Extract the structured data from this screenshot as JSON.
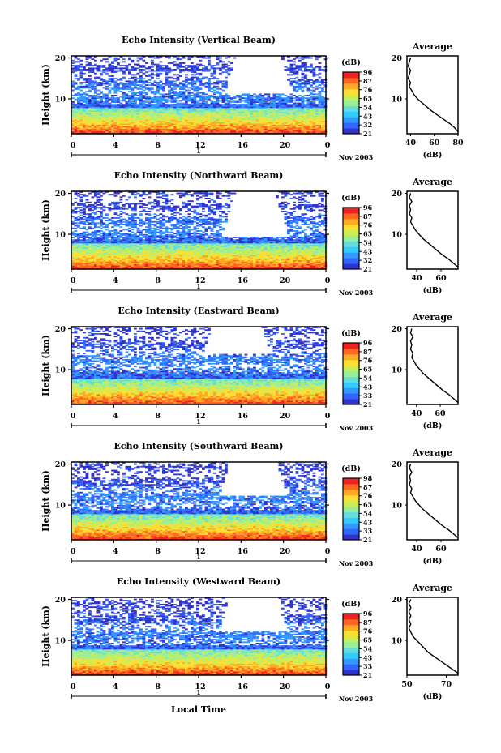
{
  "figure": {
    "xlabel": "Local Time",
    "date_label": "Nov 2003",
    "ylabel": "Height (km)",
    "cbar_unit": "(dB)",
    "avg_title": "Average",
    "avg_xlabel": "(dB)"
  },
  "colormap": [
    "#3333cc",
    "#3366ff",
    "#3399ff",
    "#33ccff",
    "#66dddd",
    "#99ee99",
    "#ccee55",
    "#ffdd33",
    "#ffaa22",
    "#ff6622",
    "#ee2222"
  ],
  "chart_data": [
    {
      "type": "heatmap",
      "title": "Echo Intensity (Vertical Beam)",
      "xlabel": "Local Time",
      "ylabel": "Height (km)",
      "x_ticks": [
        "0",
        "4",
        "8",
        "12",
        "16",
        "20",
        "0"
      ],
      "y_ticks": [
        "10",
        "20"
      ],
      "xlim": [
        0,
        24
      ],
      "ylim": [
        1.5,
        20.5
      ],
      "date_label": "Nov 2003",
      "day_label": "1",
      "colorbar": {
        "unit": "(dB)",
        "ticks": [
          "96",
          "87",
          "76",
          "65",
          "54",
          "43",
          "32",
          "21"
        ]
      },
      "gap_center_hour": 17.5,
      "gap_bottom_km": 11.5,
      "average": {
        "title": "Average",
        "xlabel": "(dB)",
        "xlim": [
          37,
          80
        ],
        "x_ticks": [
          "40",
          "60",
          "80"
        ],
        "y_ticks": [
          "10",
          "20"
        ],
        "profile": [
          [
            80,
            2
          ],
          [
            77,
            3
          ],
          [
            73,
            4
          ],
          [
            68,
            5
          ],
          [
            63,
            6
          ],
          [
            58,
            7
          ],
          [
            54,
            8
          ],
          [
            50,
            9
          ],
          [
            46,
            10
          ],
          [
            43,
            11
          ],
          [
            41,
            12
          ],
          [
            39,
            13
          ],
          [
            40,
            14
          ],
          [
            38,
            15
          ],
          [
            39,
            16
          ],
          [
            40,
            17
          ],
          [
            38,
            18
          ],
          [
            39,
            19
          ],
          [
            40,
            20
          ]
        ]
      }
    },
    {
      "type": "heatmap",
      "title": "Echo Intensity (Northward Beam)",
      "xlabel": "Local Time",
      "ylabel": "Height (km)",
      "x_ticks": [
        "0",
        "4",
        "8",
        "12",
        "16",
        "20",
        "0"
      ],
      "y_ticks": [
        "10",
        "20"
      ],
      "xlim": [
        0,
        24
      ],
      "ylim": [
        1.5,
        20.5
      ],
      "date_label": "Nov 2003",
      "day_label": "1",
      "colorbar": {
        "unit": "(dB)",
        "ticks": [
          "96",
          "87",
          "76",
          "65",
          "54",
          "43",
          "32",
          "21"
        ]
      },
      "gap_center_hour": 17.2,
      "gap_bottom_km": 9.5,
      "average": {
        "title": "Average",
        "xlabel": "(dB)",
        "xlim": [
          32,
          74
        ],
        "x_ticks": [
          "40",
          "60"
        ],
        "y_ticks": [
          "10",
          "20"
        ],
        "profile": [
          [
            74,
            2
          ],
          [
            70,
            3
          ],
          [
            66,
            4
          ],
          [
            61,
            5
          ],
          [
            57,
            6
          ],
          [
            53,
            7
          ],
          [
            49,
            8
          ],
          [
            45,
            9
          ],
          [
            42,
            10
          ],
          [
            39,
            11
          ],
          [
            37,
            12
          ],
          [
            35,
            13
          ],
          [
            36,
            14
          ],
          [
            34,
            15
          ],
          [
            35,
            16
          ],
          [
            34,
            17
          ],
          [
            36,
            18
          ],
          [
            34,
            19
          ],
          [
            35,
            20
          ]
        ]
      }
    },
    {
      "type": "heatmap",
      "title": "Echo Intensity (Eastward Beam)",
      "xlabel": "Local Time",
      "ylabel": "Height (km)",
      "x_ticks": [
        "0",
        "4",
        "8",
        "12",
        "16",
        "20",
        "0"
      ],
      "y_ticks": [
        "10",
        "20"
      ],
      "xlim": [
        0,
        24
      ],
      "ylim": [
        1.5,
        20.5
      ],
      "date_label": "Nov 2003",
      "day_label": "1",
      "colorbar": {
        "unit": "(dB)",
        "ticks": [
          "96",
          "87",
          "76",
          "65",
          "54",
          "43",
          "33",
          "21"
        ]
      },
      "gap_center_hour": 15.5,
      "gap_bottom_km": 14.0,
      "average": {
        "title": "Average",
        "xlabel": "(dB)",
        "xlim": [
          32,
          75
        ],
        "x_ticks": [
          "40",
          "60"
        ],
        "y_ticks": [
          "10",
          "20"
        ],
        "profile": [
          [
            75,
            2
          ],
          [
            71,
            3
          ],
          [
            67,
            4
          ],
          [
            62,
            5
          ],
          [
            58,
            6
          ],
          [
            54,
            7
          ],
          [
            50,
            8
          ],
          [
            46,
            9
          ],
          [
            43,
            10
          ],
          [
            40,
            11
          ],
          [
            38,
            12
          ],
          [
            36,
            13
          ],
          [
            37,
            14
          ],
          [
            35,
            15
          ],
          [
            36,
            16
          ],
          [
            35,
            17
          ],
          [
            37,
            18
          ],
          [
            35,
            19
          ],
          [
            36,
            20
          ]
        ]
      }
    },
    {
      "type": "heatmap",
      "title": "Echo Intensity (Southward Beam)",
      "xlabel": "Local Time",
      "ylabel": "Height (km)",
      "x_ticks": [
        "0",
        "4",
        "8",
        "12",
        "16",
        "20",
        "0"
      ],
      "y_ticks": [
        "10",
        "20"
      ],
      "xlim": [
        0,
        24
      ],
      "ylim": [
        1.5,
        20.5
      ],
      "date_label": "Nov 2003",
      "day_label": "1",
      "colorbar": {
        "unit": "(dB)",
        "ticks": [
          "98",
          "87",
          "76",
          "65",
          "54",
          "43",
          "33",
          "21"
        ]
      },
      "gap_center_hour": 17.0,
      "gap_bottom_km": 12.5,
      "average": {
        "title": "Average",
        "xlabel": "(dB)",
        "xlim": [
          32,
          74
        ],
        "x_ticks": [
          "40",
          "60"
        ],
        "y_ticks": [
          "10",
          "20"
        ],
        "profile": [
          [
            74,
            2
          ],
          [
            70,
            3
          ],
          [
            66,
            4
          ],
          [
            61,
            5
          ],
          [
            57,
            6
          ],
          [
            53,
            7
          ],
          [
            49,
            8
          ],
          [
            45,
            9
          ],
          [
            42,
            10
          ],
          [
            39,
            11
          ],
          [
            37,
            12
          ],
          [
            35,
            13
          ],
          [
            36,
            14
          ],
          [
            34,
            15
          ],
          [
            35,
            16
          ],
          [
            34,
            17
          ],
          [
            36,
            18
          ],
          [
            34,
            19
          ],
          [
            35,
            20
          ]
        ]
      }
    },
    {
      "type": "heatmap",
      "title": "Echo Intensity (Westward Beam)",
      "xlabel": "Local Time",
      "ylabel": "Height (km)",
      "x_ticks": [
        "0",
        "4",
        "8",
        "12",
        "16",
        "20",
        "0"
      ],
      "y_ticks": [
        "10",
        "20"
      ],
      "xlim": [
        0,
        24
      ],
      "ylim": [
        1.5,
        20.5
      ],
      "date_label": "Nov 2003",
      "day_label": "1",
      "colorbar": {
        "unit": "(dB)",
        "ticks": [
          "96",
          "87",
          "76",
          "65",
          "54",
          "43",
          "33",
          "21"
        ]
      },
      "gap_center_hour": 17.0,
      "gap_bottom_km": 12.5,
      "average": {
        "title": "Average",
        "xlabel": "(dB)",
        "xlim": [
          50,
          76
        ],
        "x_ticks": [
          "50",
          "70"
        ],
        "y_ticks": [
          "10",
          "20"
        ],
        "profile": [
          [
            76,
            2
          ],
          [
            73,
            3
          ],
          [
            70,
            4
          ],
          [
            67,
            5
          ],
          [
            64,
            6
          ],
          [
            61,
            7
          ],
          [
            59,
            8
          ],
          [
            57,
            9
          ],
          [
            55,
            10
          ],
          [
            53,
            11
          ],
          [
            52,
            12
          ],
          [
            51,
            13
          ],
          [
            52,
            14
          ],
          [
            51,
            15
          ],
          [
            52,
            16
          ],
          [
            51,
            17
          ],
          [
            52,
            18
          ],
          [
            51,
            19
          ],
          [
            52,
            20
          ]
        ]
      }
    }
  ]
}
